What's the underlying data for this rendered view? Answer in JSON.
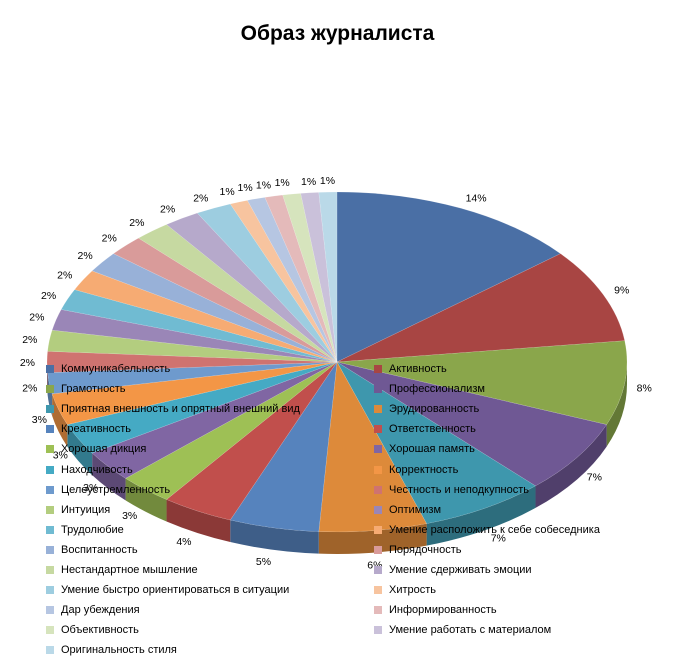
{
  "chart_data": {
    "type": "pie",
    "title": "Образ журналиста",
    "legend_position": "bottom-overlay",
    "three_d": true,
    "series": [
      {
        "values": [
          14,
          9,
          8,
          7,
          7,
          6,
          5,
          4,
          3,
          3,
          3,
          3,
          2,
          2,
          2,
          2,
          2,
          2,
          2,
          2,
          2,
          2,
          2,
          1,
          1,
          1,
          1,
          1,
          1
        ]
      }
    ],
    "categories": [
      "Коммуникабельность",
      "Активность",
      "Грамотность",
      "Профессионализм",
      "Приятная внешность и опрятный внешний вид",
      "Эрудированность",
      "Креативность",
      "Ответственность",
      "Хорошая дикция",
      "Хорошая память",
      "Находчивость",
      "Корректность",
      "Целеустремленность",
      "Честность и неподкупность",
      "Интуиция",
      "Оптимизм",
      "Трудолюбие",
      "Умение расположить к себе собеседника",
      "Воспитанность",
      "Порядочность",
      "Нестандартное мышление",
      "Умение сдерживать эмоции",
      "Умение быстро ориентироваться в ситуации",
      "Хитрость",
      "Дар убеждения",
      "Информированность",
      "Объективность",
      "Умение работать с материалом",
      "Оригинальность стиля"
    ],
    "labels": [
      "14%",
      "9%",
      "8%",
      "7%",
      "7%",
      "6%",
      "5%",
      "4%",
      "3%",
      "3%",
      "3%",
      "3%",
      "2%",
      "2%",
      "2%",
      "2%",
      "2%",
      "2%",
      "2%",
      "2%",
      "2%",
      "2%",
      "2%",
      "1%",
      "1%",
      "1%",
      "1%",
      "1%",
      "1%"
    ],
    "colors": [
      "#4a6fa5",
      "#a84543",
      "#8aa64b",
      "#6f5894",
      "#3e97ad",
      "#dd8a3a",
      "#5683bd",
      "#c14f4c",
      "#9ec055",
      "#8066a3",
      "#45aac4",
      "#f39646",
      "#6e9acd",
      "#cf7370",
      "#b3cd7f",
      "#9a86b7",
      "#70bbd2",
      "#f6ab73",
      "#98b1d8",
      "#d99b9a",
      "#c6d9a1",
      "#b6a9cb",
      "#9dcde0",
      "#f7c49f",
      "#b6c6e2",
      "#e4baba",
      "#d6e4bd",
      "#cac1da",
      "#bad9e8"
    ]
  }
}
